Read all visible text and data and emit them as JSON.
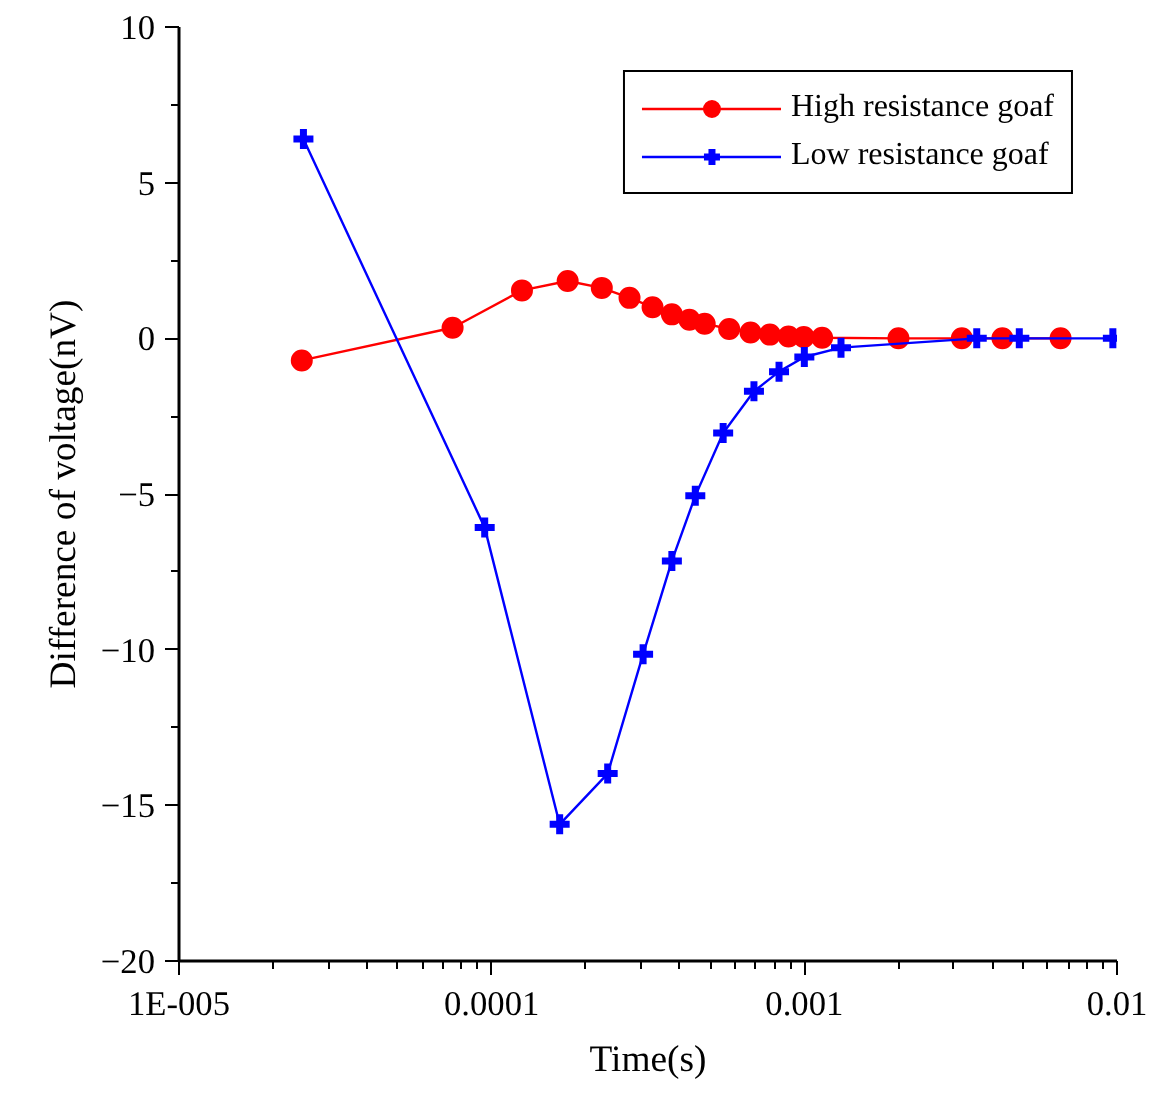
{
  "chart_data": {
    "type": "line",
    "xlabel": "Time(s)",
    "ylabel": "Difference of voltage(nV)",
    "log": "x",
    "xlim": [
      1e-05,
      0.01
    ],
    "xticks": [
      {
        "value": 1e-05,
        "label": "1E-005"
      },
      {
        "value": 0.0001,
        "label": "0.0001"
      },
      {
        "value": 0.001,
        "label": "0.001"
      },
      {
        "value": 0.01,
        "label": "0.01"
      }
    ],
    "ylim": [
      -20,
      10
    ],
    "yticks": [
      -20,
      -15,
      -10,
      -5,
      0,
      5,
      10
    ],
    "grid": false,
    "legend": "top right",
    "series": [
      {
        "name": "High resistance goaf",
        "color": "#ff0000",
        "marker": "circle",
        "x": [
          2.47e-05,
          7.5e-05,
          0.000125,
          0.000175,
          0.000225,
          0.000276,
          0.000327,
          0.000377,
          0.000429,
          0.00048,
          0.000575,
          0.000673,
          0.000776,
          0.00089,
          0.000996,
          0.00114,
          0.002,
          0.00319,
          0.0043,
          0.0066
        ],
        "values": [
          -0.71,
          0.34,
          1.54,
          1.84,
          1.62,
          1.3,
          1.0,
          0.77,
          0.6,
          0.47,
          0.3,
          0.19,
          0.12,
          0.06,
          0.04,
          0.02,
          0,
          0,
          0,
          0
        ]
      },
      {
        "name": "Low resistance goaf",
        "color": "#0000ff",
        "marker": "cross",
        "x": [
          2.5e-05,
          9.5e-05,
          0.000165,
          0.000235,
          0.000305,
          0.000377,
          0.000448,
          0.00055,
          0.00069,
          0.00083,
          0.001,
          0.00131,
          0.00356,
          0.00487,
          0.0097
        ],
        "values": [
          6.4,
          -6.08,
          -15.61,
          -13.98,
          -10.15,
          -7.15,
          -5.06,
          -3.04,
          -1.7,
          -1.07,
          -0.6,
          -0.3,
          0,
          0,
          0
        ]
      }
    ]
  }
}
